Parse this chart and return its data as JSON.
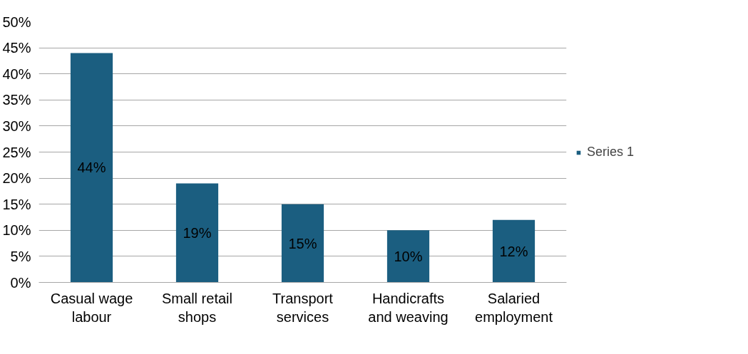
{
  "chart_data": {
    "type": "bar",
    "categories": [
      "Casual wage labour",
      "Small retail shops",
      "Transport services",
      "Handicrafts and weaving",
      "Salaried employment"
    ],
    "series": [
      {
        "name": "Series 1",
        "color": "#1b5e80",
        "values": [
          44,
          19,
          15,
          10,
          12
        ],
        "value_labels": [
          "44%",
          "19%",
          "15%",
          "10%",
          "12%"
        ]
      }
    ],
    "ylim": [
      0,
      50
    ],
    "yticks": [
      {
        "value": 0,
        "label": "0%"
      },
      {
        "value": 5,
        "label": "5%"
      },
      {
        "value": 10,
        "label": "10%"
      },
      {
        "value": 15,
        "label": "15%"
      },
      {
        "value": 20,
        "label": "20%"
      },
      {
        "value": 25,
        "label": "25%"
      },
      {
        "value": 30,
        "label": "30%"
      },
      {
        "value": 35,
        "label": "35%"
      },
      {
        "value": 40,
        "label": "40%"
      },
      {
        "value": 45,
        "label": "45%"
      },
      {
        "value": 50,
        "label": "50%"
      }
    ],
    "grid": "y",
    "legend": "right"
  }
}
